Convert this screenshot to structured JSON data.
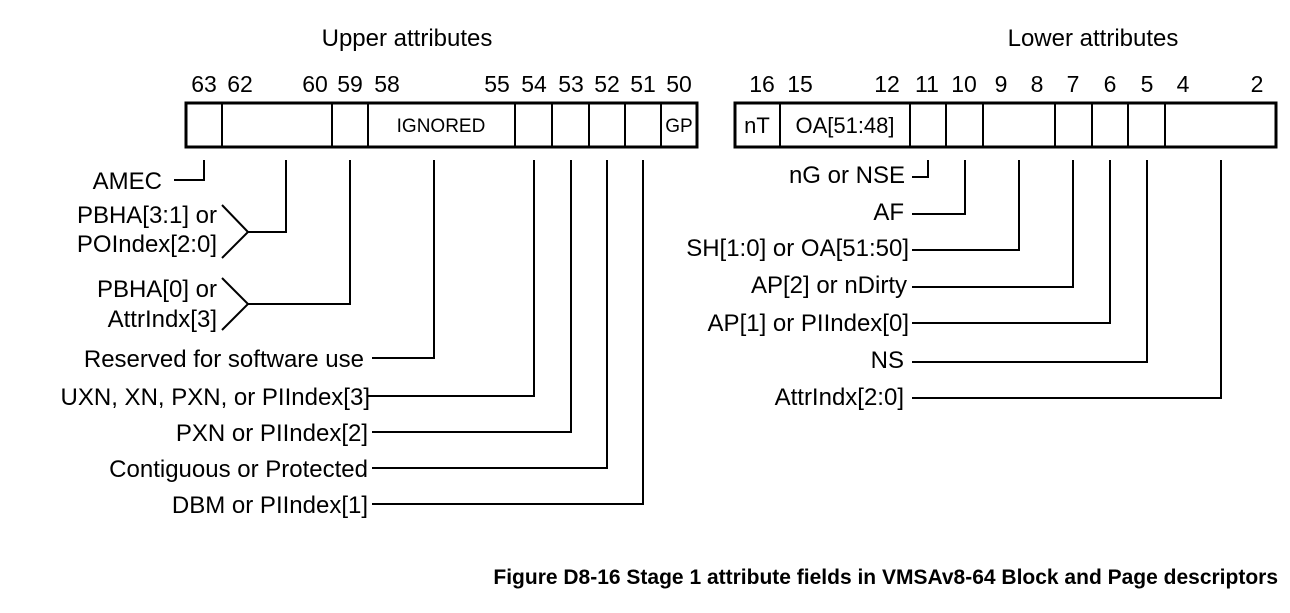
{
  "upper": {
    "title": "Upper attributes",
    "bits": [
      "63",
      "62",
      "60",
      "59",
      "58",
      "55",
      "54",
      "53",
      "52",
      "51",
      "50"
    ],
    "cells": {
      "ignored": "IGNORED",
      "gp": "GP"
    },
    "fields": [
      "AMEC",
      "PBHA[3:1] or",
      "POIndex[2:0]",
      "PBHA[0] or",
      "AttrIndx[3]",
      "Reserved for software use",
      "UXN, XN, PXN, or PIIndex[3]",
      "PXN or PIIndex[2]",
      "Contiguous or Protected",
      "DBM or PIIndex[1]"
    ]
  },
  "lower": {
    "title": "Lower attributes",
    "bits": [
      "16",
      "15",
      "12",
      "11",
      "10",
      "9",
      "8",
      "7",
      "6",
      "5",
      "4",
      "2"
    ],
    "cells": {
      "nt": "nT",
      "oa": "OA[51:48]"
    },
    "fields": [
      "nG or NSE",
      "AF",
      "SH[1:0] or OA[51:50]",
      "AP[2] or nDirty",
      "AP[1] or PIIndex[0]",
      "NS",
      "AttrIndx[2:0]"
    ]
  },
  "caption": "Figure D8-16 Stage 1 attribute fields in VMSAv8-64 Block and Page descriptors"
}
